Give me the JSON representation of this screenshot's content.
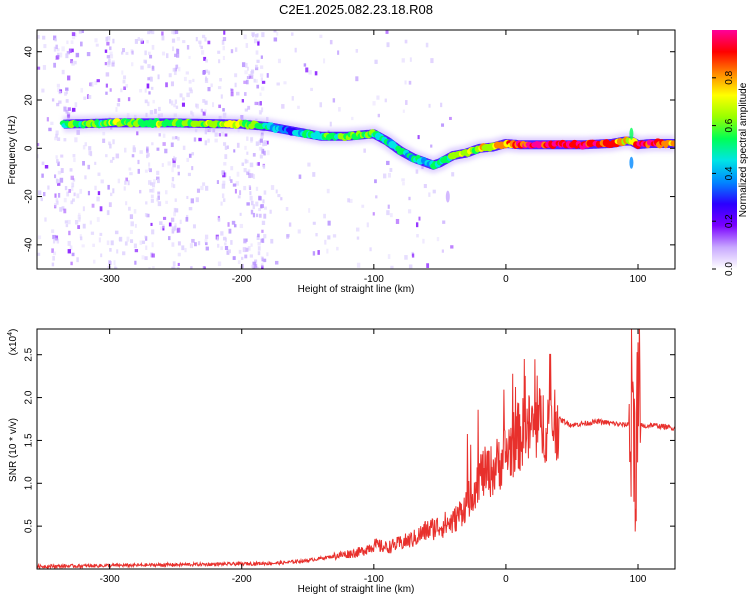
{
  "title": "C2E1.2025.082.23.18.R08",
  "chart_data": [
    {
      "type": "heatmap",
      "xlabel": "Height of straight line (km)",
      "ylabel": "Frequency (Hz)",
      "xlim": [
        -355,
        128
      ],
      "ylim": [
        -50,
        49
      ],
      "xticks": [
        -300,
        -200,
        -100,
        0,
        100
      ],
      "xtick_labels": [
        "-300",
        "-200",
        "-100",
        "0",
        "100"
      ],
      "yticks": [
        -40,
        -20,
        0,
        20,
        40
      ],
      "ytick_labels": [
        "-40",
        "-20",
        "0",
        "20",
        "40"
      ],
      "colorbar": {
        "label": "Normalized spectral amplitude",
        "range": [
          0,
          1
        ],
        "ticks": [
          0,
          0.2,
          0.4,
          0.6,
          0.8
        ],
        "tick_labels": [
          "0.0",
          "0.2",
          "0.4",
          "0.6",
          "0.8"
        ],
        "colors": [
          "#ffffff",
          "#c8a8ff",
          "#7a00ff",
          "#2a00ff",
          "#0088ff",
          "#00e5e5",
          "#00ff55",
          "#99ff00",
          "#ffff00",
          "#ff8800",
          "#ff0000",
          "#ff0099"
        ]
      },
      "ridge": {
        "height_km": [
          -335,
          -300,
          -250,
          -200,
          -180,
          -170,
          -160,
          -140,
          -120,
          -100,
          -90,
          -80,
          -70,
          -60,
          -55,
          -50,
          -40,
          -30,
          -20,
          -10,
          0,
          10,
          20,
          40,
          60,
          80,
          90,
          95,
          100,
          110,
          128
        ],
        "frequency_hz": [
          10,
          10.5,
          10.5,
          10,
          9,
          8,
          7,
          5,
          5,
          6,
          3,
          -1,
          -4,
          -6,
          -7,
          -6,
          -3,
          -2,
          0,
          0.5,
          2,
          1.5,
          1.5,
          1.5,
          1.5,
          2,
          3,
          3,
          1.5,
          2,
          2
        ],
        "amplitude": [
          0.55,
          0.6,
          0.6,
          0.65,
          0.5,
          0.35,
          0.35,
          0.5,
          0.6,
          0.55,
          0.45,
          0.5,
          0.45,
          0.4,
          0.45,
          0.5,
          0.6,
          0.65,
          0.7,
          0.7,
          0.8,
          0.9,
          0.95,
          0.95,
          0.95,
          0.85,
          0.7,
          0.6,
          0.9,
          0.95,
          0.75
        ]
      }
    },
    {
      "type": "line",
      "xlabel": "Height of straight line (km)",
      "ylabel": "SNR (10 * v/v)",
      "y_multiplier": "(x10",
      "y_multiplier_exp": "4",
      "multiplier_close": ")",
      "xlim": [
        -355,
        128
      ],
      "ylim": [
        0,
        2.8
      ],
      "xticks": [
        -300,
        -200,
        -100,
        0,
        100
      ],
      "xtick_labels": [
        "-300",
        "-200",
        "-100",
        "0",
        "100"
      ],
      "yticks": [
        0.5,
        1.0,
        1.5,
        2.0,
        2.5
      ],
      "ytick_labels": [
        "0.5",
        "1.0",
        "1.5",
        "2.0",
        "2.5"
      ],
      "series": [
        {
          "name": "SNR",
          "color": "#e8302c",
          "x": [
            -355,
            -300,
            -250,
            -200,
            -170,
            -150,
            -130,
            -110,
            -100,
            -90,
            -80,
            -70,
            -60,
            -50,
            -40,
            -30,
            -25,
            -20,
            -10,
            0,
            10,
            20,
            30,
            40,
            50,
            60,
            70,
            80,
            90,
            95,
            98,
            100,
            102,
            105,
            110,
            120,
            128
          ],
          "y": [
            0.03,
            0.04,
            0.05,
            0.06,
            0.07,
            0.1,
            0.15,
            0.2,
            0.28,
            0.25,
            0.3,
            0.35,
            0.45,
            0.5,
            0.55,
            0.75,
            0.9,
            1.1,
            1.15,
            1.35,
            1.55,
            1.65,
            1.7,
            1.75,
            1.68,
            1.7,
            1.72,
            1.7,
            1.68,
            1.7,
            1.7,
            1.72,
            1.68,
            1.66,
            1.68,
            1.66,
            1.64
          ]
        }
      ]
    }
  ]
}
